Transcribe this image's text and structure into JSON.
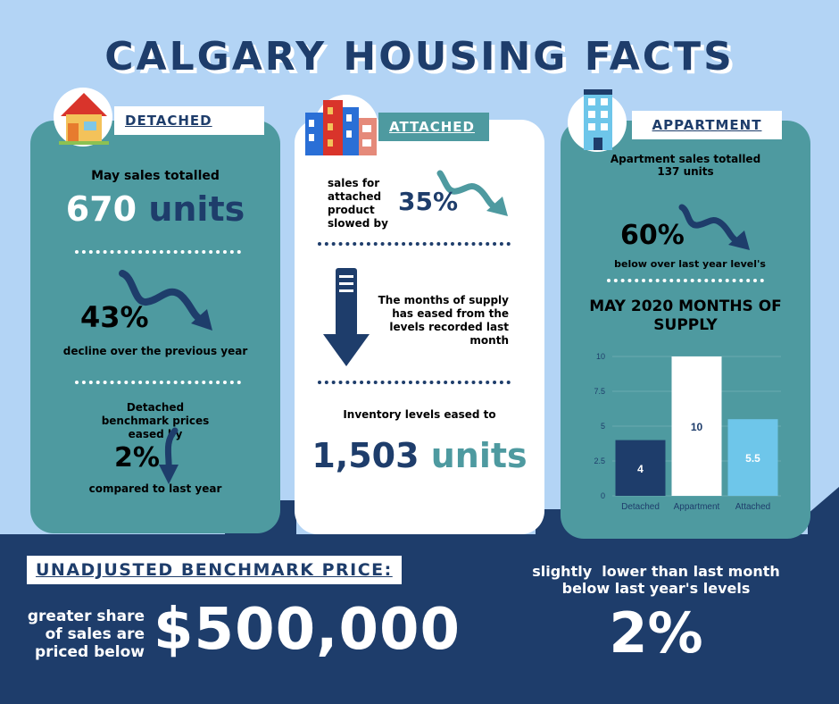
{
  "title": "CALGARY HOUSING FACTS",
  "colors": {
    "sky": "#b3d4f5",
    "navy": "#1e3d6b",
    "teal": "#4e9aa0",
    "light_blue": "#6ec6ea",
    "white": "#ffffff"
  },
  "detached": {
    "label": "DETACHED",
    "icon": "house-icon",
    "sales_intro": "May sales totalled",
    "sales_number": "670",
    "sales_unit": "units",
    "decline_percent": "43%",
    "decline_text": "decline over the previous year",
    "benchmark_text": "Detached benchmark prices eased by",
    "benchmark_percent": "2%",
    "benchmark_suffix": "compared to last year"
  },
  "attached": {
    "label": "ATTACHED",
    "icon": "row-houses-icon",
    "sales_text": "sales for attached product slowed by",
    "sales_percent": "35%",
    "supply_text": "The months of supply has eased from the levels recorded last month",
    "inventory_text": "Inventory levels eased to",
    "inventory_number": "1,503",
    "inventory_unit": "units"
  },
  "apartment": {
    "label": "APPARTMENT",
    "icon": "apartment-building-icon",
    "sales_text": "Apartment sales totalled 137 units",
    "percent": "60%",
    "percent_text": "below over last year level's",
    "chart_title": "MAY 2020 MONTHS OF SUPPLY"
  },
  "chart_data": {
    "type": "bar",
    "title": "MAY 2020 MONTHS OF SUPPLY",
    "categories": [
      "Detached",
      "Appartment",
      "Attached"
    ],
    "values": [
      4,
      10,
      5.5
    ],
    "value_labels": [
      "4",
      "10",
      "5.5"
    ],
    "colors": [
      "#1e3d6b",
      "#ffffff",
      "#6ec6ea"
    ],
    "label_colors": [
      "#ffffff",
      "#1e3d6b",
      "#ffffff"
    ],
    "ylim": [
      0,
      10
    ],
    "yticks": [
      "0",
      "2.5",
      "5",
      "7.5",
      "10"
    ],
    "ytick_values": [
      0,
      2.5,
      5,
      7.5,
      10
    ],
    "grid": true,
    "xlabel": "",
    "ylabel": ""
  },
  "benchmark": {
    "label": "UNADJUSTED BENCHMARK PRICE:",
    "share_text_1": "greater share",
    "share_text_2": "of sales are",
    "share_text_3": "priced below",
    "price": "$500,000",
    "change_text_1": "slightly  lower than last month",
    "change_text_2": "below last year's levels",
    "change_percent": "2%"
  }
}
